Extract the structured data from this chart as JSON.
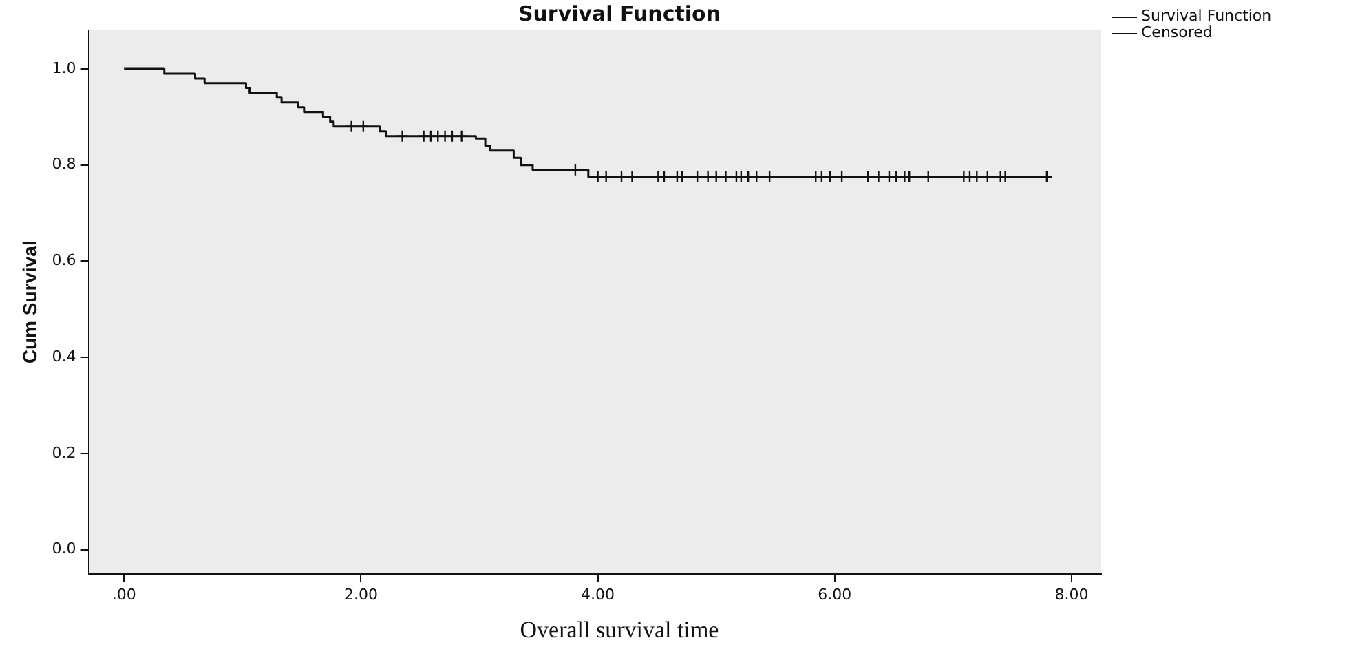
{
  "chart_data": {
    "type": "step",
    "title": "Survival Function",
    "xlabel": "Overall survival time",
    "ylabel": "Cum Survival",
    "xlim": [
      -0.3,
      8.25
    ],
    "ylim": [
      -0.05,
      1.08
    ],
    "xticks": [
      {
        "value": 0,
        "label": ".00"
      },
      {
        "value": 2,
        "label": "2.00"
      },
      {
        "value": 4,
        "label": "4.00"
      },
      {
        "value": 6,
        "label": "6.00"
      },
      {
        "value": 8,
        "label": "8.00"
      }
    ],
    "yticks": [
      {
        "value": 0,
        "label": "0.0"
      },
      {
        "value": 0.2,
        "label": "0.2"
      },
      {
        "value": 0.4,
        "label": "0.4"
      },
      {
        "value": 0.6,
        "label": "0.6"
      },
      {
        "value": 0.8,
        "label": "0.8"
      },
      {
        "value": 1,
        "label": "1.0"
      }
    ],
    "legend": "top right",
    "grid": false,
    "series": [
      {
        "name": "Survival Function",
        "color": "#111111",
        "marker": "none",
        "x": [
          0,
          0.34,
          0.6,
          0.68,
          1.03,
          1.06,
          1.29,
          1.33,
          1.47,
          1.52,
          1.68,
          1.74,
          1.77,
          2.16,
          2.21,
          2.97,
          3.05,
          3.09,
          3.29,
          3.35,
          3.45,
          3.92,
          7.8
        ],
        "values": [
          1.0,
          0.99,
          0.98,
          0.97,
          0.96,
          0.95,
          0.94,
          0.93,
          0.92,
          0.91,
          0.9,
          0.89,
          0.88,
          0.87,
          0.86,
          0.855,
          0.84,
          0.83,
          0.815,
          0.8,
          0.79,
          0.775,
          0.775
        ]
      },
      {
        "name": "Censored",
        "type": "scatter",
        "color": "#111111",
        "marker": "cross",
        "x": [
          1.92,
          2.02,
          2.35,
          2.53,
          2.59,
          2.65,
          2.71,
          2.77,
          2.85,
          3.81,
          4.0,
          4.07,
          4.2,
          4.29,
          4.51,
          4.56,
          4.67,
          4.71,
          4.84,
          4.93,
          5.0,
          5.08,
          5.17,
          5.21,
          5.27,
          5.34,
          5.45,
          5.84,
          5.89,
          5.96,
          6.06,
          6.28,
          6.37,
          6.46,
          6.52,
          6.59,
          6.63,
          6.79,
          7.09,
          7.14,
          7.2,
          7.29,
          7.4,
          7.44,
          7.79
        ],
        "values": [
          0.88,
          0.88,
          0.86,
          0.86,
          0.86,
          0.86,
          0.86,
          0.86,
          0.86,
          0.79,
          0.775,
          0.775,
          0.775,
          0.775,
          0.775,
          0.775,
          0.775,
          0.775,
          0.775,
          0.775,
          0.775,
          0.775,
          0.775,
          0.775,
          0.775,
          0.775,
          0.775,
          0.775,
          0.775,
          0.775,
          0.775,
          0.775,
          0.775,
          0.775,
          0.775,
          0.775,
          0.775,
          0.775,
          0.775,
          0.775,
          0.775,
          0.775,
          0.775,
          0.775,
          0.775
        ]
      }
    ]
  }
}
